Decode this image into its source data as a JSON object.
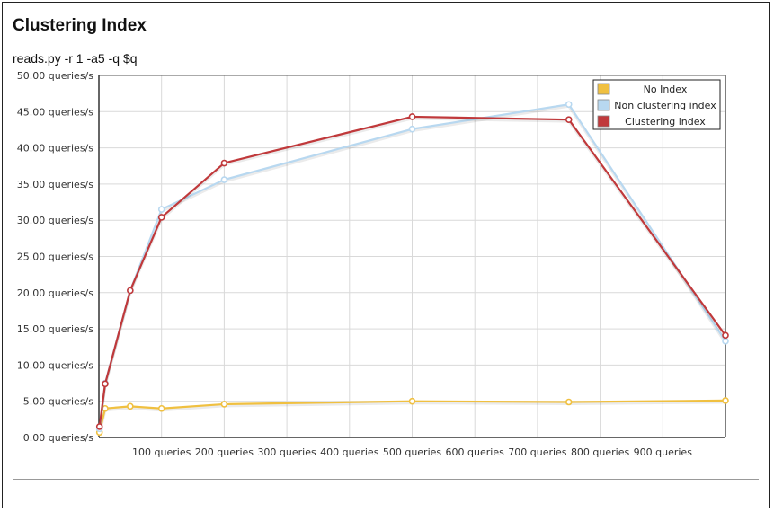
{
  "chart_data": {
    "type": "line",
    "title": "Clustering Index",
    "subtitle": "reads.py -r 1 -a5 -q $q",
    "xlabel": "",
    "ylabel": "",
    "xlim": [
      0,
      1000
    ],
    "ylim": [
      0,
      50
    ],
    "grid": true,
    "legend_position": "top-right",
    "x_ticks": [
      {
        "value": 100,
        "label": "100 queries"
      },
      {
        "value": 200,
        "label": "200 queries"
      },
      {
        "value": 300,
        "label": "300 queries"
      },
      {
        "value": 400,
        "label": "400 queries"
      },
      {
        "value": 500,
        "label": "500 queries"
      },
      {
        "value": 600,
        "label": "600 queries"
      },
      {
        "value": 700,
        "label": "700 queries"
      },
      {
        "value": 800,
        "label": "800 queries"
      },
      {
        "value": 900,
        "label": "900 queries"
      }
    ],
    "y_ticks": [
      {
        "value": 0,
        "label": "0.00 queries/s"
      },
      {
        "value": 5,
        "label": "5.00 queries/s"
      },
      {
        "value": 10,
        "label": "10.00 queries/s"
      },
      {
        "value": 15,
        "label": "15.00 queries/s"
      },
      {
        "value": 20,
        "label": "20.00 queries/s"
      },
      {
        "value": 25,
        "label": "25.00 queries/s"
      },
      {
        "value": 30,
        "label": "30.00 queries/s"
      },
      {
        "value": 35,
        "label": "35.00 queries/s"
      },
      {
        "value": 40,
        "label": "40.00 queries/s"
      },
      {
        "value": 45,
        "label": "45.00 queries/s"
      },
      {
        "value": 50,
        "label": "50.00 queries/s"
      }
    ],
    "series": [
      {
        "name": "No Index",
        "color": "#f0c040",
        "x": [
          1,
          10,
          50,
          100,
          200,
          500,
          750,
          1000
        ],
        "y": [
          0.7,
          4.0,
          4.3,
          4.0,
          4.6,
          5.0,
          4.9,
          5.1
        ]
      },
      {
        "name": "Non clustering index",
        "color": "#b8d8f0",
        "x": [
          1,
          10,
          50,
          100,
          200,
          500,
          750,
          1000
        ],
        "y": [
          1.2,
          7.5,
          20.3,
          31.5,
          35.6,
          42.6,
          46.0,
          13.3
        ]
      },
      {
        "name": "Clustering index",
        "color": "#c0393b",
        "x": [
          1,
          10,
          50,
          100,
          200,
          500,
          750,
          1000
        ],
        "y": [
          1.5,
          7.4,
          20.3,
          30.4,
          37.9,
          44.3,
          43.9,
          14.1
        ]
      }
    ]
  }
}
